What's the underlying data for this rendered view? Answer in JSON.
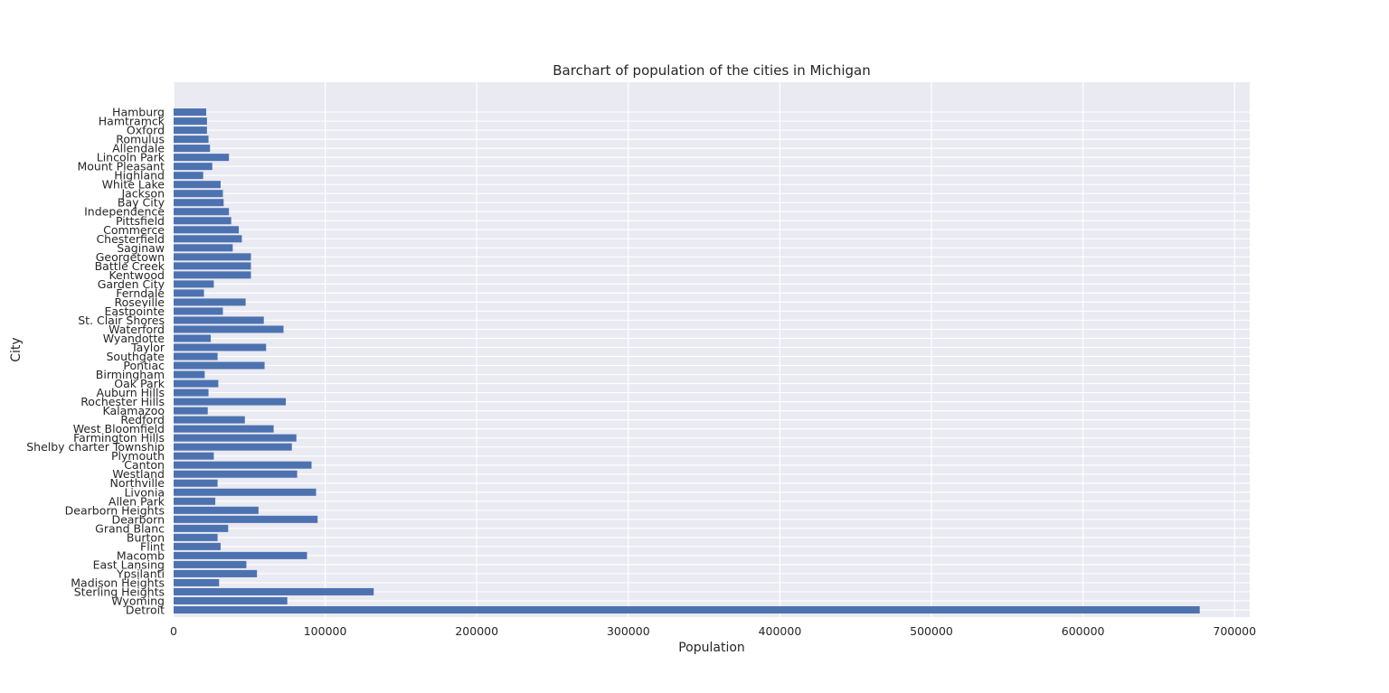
{
  "chart_data": {
    "type": "bar",
    "orientation": "horizontal",
    "title": "Barchart of population of the cities in Michigan",
    "xlabel": "Population",
    "ylabel": "City",
    "xlim": [
      0,
      710000
    ],
    "xticks": [
      0,
      100000,
      200000,
      300000,
      400000,
      500000,
      600000,
      700000
    ],
    "grid": true,
    "legend": "none",
    "bar_color": "#4c72b0",
    "background_color": "#eaeaf2",
    "categories": [
      "Detroit",
      "Wyoming",
      "Sterling Heights",
      "Madison Heights",
      "Ypsilanti",
      "East Lansing",
      "Macomb",
      "Flint",
      "Burton",
      "Grand Blanc",
      "Dearborn",
      "Dearborn Heights",
      "Allen Park",
      "Livonia",
      "Northville",
      "Westland",
      "Canton",
      "Plymouth",
      "Shelby charter Township",
      "Farmington Hills",
      "West Bloomfield",
      "Redford",
      "Kalamazoo",
      "Rochester Hills",
      "Auburn Hills",
      "Oak Park",
      "Birmingham",
      "Pontiac",
      "Southgate",
      "Taylor",
      "Wyandotte",
      "Waterford",
      "St. Clair Shores",
      "Eastpointe",
      "Roseville",
      "Ferndale",
      "Garden City",
      "Kentwood",
      "Battle Creek",
      "Georgetown",
      "Saginaw",
      "Chesterfield",
      "Commerce",
      "Pittsfield",
      "Independence",
      "Bay City",
      "Jackson",
      "White Lake",
      "Highland",
      "Mount Pleasant",
      "Lincoln Park",
      "Allendale",
      "Romulus",
      "Oxford",
      "Hamtramck",
      "Hamburg"
    ],
    "values": [
      677000,
      75000,
      132000,
      30000,
      55000,
      48000,
      88000,
      31000,
      29000,
      36000,
      95000,
      56000,
      27500,
      94000,
      29000,
      81500,
      91000,
      26500,
      78000,
      81000,
      66000,
      47000,
      22500,
      74000,
      23000,
      29500,
      20500,
      60000,
      29000,
      61000,
      24500,
      72500,
      59500,
      32500,
      47500,
      20000,
      26500,
      51000,
      51000,
      51000,
      39000,
      45000,
      43000,
      38000,
      36500,
      33000,
      32500,
      31000,
      19500,
      25500,
      36500,
      24000,
      23000,
      22000,
      22000,
      21500
    ]
  }
}
